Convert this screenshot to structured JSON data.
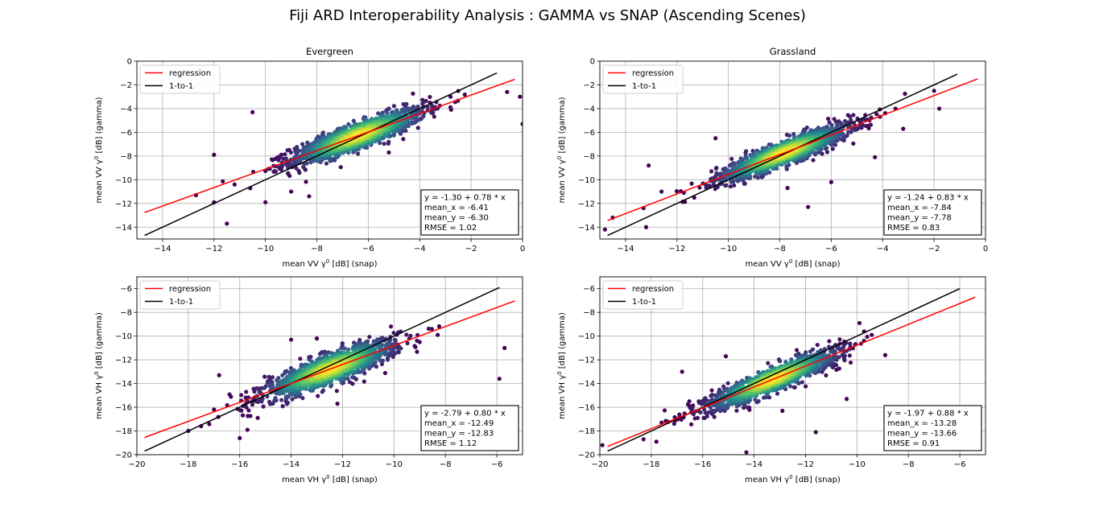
{
  "figure": {
    "title": "Fiji ARD Interoperability Analysis : GAMMA vs SNAP (Ascending Scenes)"
  },
  "colors": {
    "regression": "#ff0000",
    "one_to_one": "#000000",
    "grid": "#b0b0b0",
    "density_low": "#440154",
    "density_high": "#fde725"
  },
  "chart_data": [
    {
      "type": "scatter",
      "title": "Evergreen",
      "xlabel_prefix": "mean VV γ",
      "xlabel_sup": "0",
      "xlabel_suffix": " [dB] (snap)",
      "ylabel_prefix": "mean VV γ",
      "ylabel_sup": "0",
      "ylabel_suffix": " [dB] (gamma)",
      "xlim": [
        -15,
        0
      ],
      "ylim": [
        -15,
        0
      ],
      "xticks": [
        -14,
        -12,
        -10,
        -8,
        -6,
        -4,
        -2,
        0
      ],
      "yticks": [
        -14,
        -12,
        -10,
        -8,
        -6,
        -4,
        -2,
        0
      ],
      "grid": true,
      "legend": {
        "position": "upper-left",
        "entries": [
          "regression",
          "1-to-1"
        ]
      },
      "regression": {
        "intercept": -1.3,
        "slope": 0.78,
        "x_range": [
          -14.7,
          -0.3
        ]
      },
      "one_to_one": {
        "x_range": [
          -14.7,
          -1.0
        ]
      },
      "stats": {
        "mean_x": -6.41,
        "mean_y": -6.3,
        "rmse": 1.02
      },
      "stats_lines": [
        "y = -1.30 + 0.78 * x",
        "mean_x = -6.41",
        "mean_y = -6.30",
        "RMSE = 1.02"
      ],
      "cloud": {
        "n": 1400,
        "sd_x": 1.3,
        "sd_y_resid": 0.55
      },
      "outliers": [
        [
          -12.0,
          -7.9
        ],
        [
          -12.7,
          -11.3
        ],
        [
          -11.5,
          -13.7
        ],
        [
          -12.0,
          -11.9
        ],
        [
          -10.5,
          -4.3
        ],
        [
          -10.0,
          -11.9
        ],
        [
          -9.0,
          -11.0
        ],
        [
          -0.1,
          -3.0
        ],
        [
          0.0,
          -5.3
        ],
        [
          -0.6,
          -2.6
        ],
        [
          -2.8,
          -3.0
        ],
        [
          -3.6,
          -3.5
        ],
        [
          -11.2,
          -10.4
        ],
        [
          -8.3,
          -11.4
        ],
        [
          -5.2,
          -7.7
        ]
      ]
    },
    {
      "type": "scatter",
      "title": "Grassland",
      "xlabel_prefix": "mean VV γ",
      "xlabel_sup": "0",
      "xlabel_suffix": " [dB] (snap)",
      "ylabel_prefix": "mean VV γ",
      "ylabel_sup": "0",
      "ylabel_suffix": " [dB] (gamma)",
      "xlim": [
        -15,
        0
      ],
      "ylim": [
        -15,
        0
      ],
      "xticks": [
        -14,
        -12,
        -10,
        -8,
        -6,
        -4,
        -2,
        0
      ],
      "yticks": [
        -14,
        -12,
        -10,
        -8,
        -6,
        -4,
        -2,
        0
      ],
      "grid": true,
      "legend": {
        "position": "upper-left",
        "entries": [
          "regression",
          "1-to-1"
        ]
      },
      "regression": {
        "intercept": -1.24,
        "slope": 0.83,
        "x_range": [
          -14.7,
          -0.3
        ]
      },
      "one_to_one": {
        "x_range": [
          -14.7,
          -1.1
        ]
      },
      "stats": {
        "mean_x": -7.84,
        "mean_y": -7.78,
        "rmse": 0.83
      },
      "stats_lines": [
        "y = -1.24 + 0.83 * x",
        "mean_x = -7.84",
        "mean_y = -7.78",
        "RMSE = 0.83"
      ],
      "cloud": {
        "n": 1400,
        "sd_x": 1.3,
        "sd_y_resid": 0.5
      },
      "outliers": [
        [
          -14.8,
          -14.2
        ],
        [
          -14.5,
          -13.2
        ],
        [
          -13.2,
          -14.0
        ],
        [
          -13.1,
          -8.8
        ],
        [
          -13.3,
          -12.4
        ],
        [
          -12.6,
          -11.0
        ],
        [
          -2.0,
          -2.5
        ],
        [
          -1.8,
          -4.0
        ],
        [
          -3.2,
          -5.7
        ],
        [
          -3.5,
          -4.0
        ],
        [
          -6.9,
          -12.3
        ],
        [
          -7.7,
          -10.7
        ],
        [
          -6.0,
          -10.2
        ],
        [
          -10.5,
          -6.5
        ],
        [
          -4.3,
          -8.1
        ]
      ]
    },
    {
      "type": "scatter",
      "title": "",
      "xlabel_prefix": "mean VH γ",
      "xlabel_sup": "0",
      "xlabel_suffix": " [dB] (snap)",
      "ylabel_prefix": "mean VH γ",
      "ylabel_sup": "0",
      "ylabel_suffix": " [dB] (gamma)",
      "xlim": [
        -20,
        -5
      ],
      "ylim": [
        -20,
        -5
      ],
      "xticks": [
        -20,
        -18,
        -16,
        -14,
        -12,
        -10,
        -8,
        -6
      ],
      "yticks": [
        -20,
        -18,
        -16,
        -14,
        -12,
        -10,
        -8,
        -6
      ],
      "grid": true,
      "legend": {
        "position": "upper-left",
        "entries": [
          "regression",
          "1-to-1"
        ]
      },
      "regression": {
        "intercept": -2.79,
        "slope": 0.8,
        "x_range": [
          -19.7,
          -5.3
        ]
      },
      "one_to_one": {
        "x_range": [
          -19.7,
          -5.9
        ]
      },
      "stats": {
        "mean_x": -12.49,
        "mean_y": -12.83,
        "rmse": 1.12
      },
      "stats_lines": [
        "y = -2.79 + 0.80 * x",
        "mean_x = -12.49",
        "mean_y = -12.83",
        "RMSE = 1.12"
      ],
      "cloud": {
        "n": 1400,
        "sd_x": 1.3,
        "sd_y_resid": 0.6
      },
      "outliers": [
        [
          -18.0,
          -18.0
        ],
        [
          -17.5,
          -17.6
        ],
        [
          -16.8,
          -13.3
        ],
        [
          -16.0,
          -18.6
        ],
        [
          -17.0,
          -16.2
        ],
        [
          -15.7,
          -17.9
        ],
        [
          -5.7,
          -11.0
        ],
        [
          -5.9,
          -13.6
        ],
        [
          -8.3,
          -9.9
        ],
        [
          -9.0,
          -10.5
        ],
        [
          -12.2,
          -15.7
        ],
        [
          -14.0,
          -10.3
        ],
        [
          -13.0,
          -10.2
        ],
        [
          -15.3,
          -16.9
        ]
      ]
    },
    {
      "type": "scatter",
      "title": "",
      "xlabel_prefix": "mean VH γ",
      "xlabel_sup": "0",
      "xlabel_suffix": " [dB] (snap)",
      "ylabel_prefix": "mean VH γ",
      "ylabel_sup": "0",
      "ylabel_suffix": " [dB] (gamma)",
      "xlim": [
        -20,
        -5
      ],
      "ylim": [
        -20,
        -5
      ],
      "xticks": [
        -20,
        -18,
        -16,
        -14,
        -12,
        -10,
        -8,
        -6
      ],
      "yticks": [
        -20,
        -18,
        -16,
        -14,
        -12,
        -10,
        -8,
        -6
      ],
      "grid": true,
      "legend": {
        "position": "upper-left",
        "entries": [
          "regression",
          "1-to-1"
        ]
      },
      "regression": {
        "intercept": -1.97,
        "slope": 0.88,
        "x_range": [
          -19.7,
          -5.4
        ]
      },
      "one_to_one": {
        "x_range": [
          -19.7,
          -6.0
        ]
      },
      "stats": {
        "mean_x": -13.28,
        "mean_y": -13.66,
        "rmse": 0.91
      },
      "stats_lines": [
        "y = -1.97 + 0.88 * x",
        "mean_x = -13.28",
        "mean_y = -13.66",
        "RMSE = 0.91"
      ],
      "cloud": {
        "n": 1400,
        "sd_x": 1.3,
        "sd_y_resid": 0.5
      },
      "outliers": [
        [
          -19.9,
          -19.2
        ],
        [
          -18.3,
          -18.7
        ],
        [
          -17.8,
          -18.9
        ],
        [
          -17.6,
          -17.3
        ],
        [
          -14.3,
          -19.8
        ],
        [
          -11.6,
          -18.1
        ],
        [
          -9.9,
          -8.9
        ],
        [
          -8.9,
          -11.6
        ],
        [
          -10.4,
          -15.3
        ],
        [
          -16.8,
          -13.0
        ],
        [
          -15.1,
          -11.7
        ],
        [
          -12.9,
          -16.3
        ]
      ]
    }
  ]
}
